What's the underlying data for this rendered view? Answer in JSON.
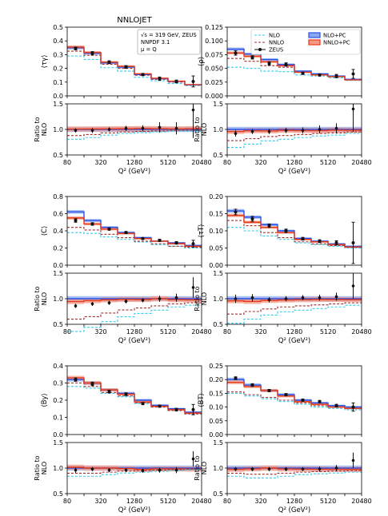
{
  "figure": {
    "title": "NNLOJET",
    "info_box": [
      "√s = 319 GeV, ZEUS",
      "NNPDF 3.1",
      "μ = Q"
    ],
    "legend": [
      {
        "label": "NLO",
        "kind": "nlo"
      },
      {
        "label": "NLO+PC",
        "kind": "nlopc"
      },
      {
        "label": "NNLO",
        "kind": "nnlo"
      },
      {
        "label": "NNLO+PC",
        "kind": "nnlopc"
      },
      {
        "label": "ZEUS",
        "kind": "data"
      }
    ],
    "colors": {
      "nlo": "#33ccee",
      "nnlo": "#a03030",
      "nlopc": "#2850e6",
      "nlopc_band": "#8aa8f2",
      "nnlopc": "#e83a18",
      "nnlopc_band": "#f49a84",
      "data": "#111111"
    }
  },
  "chart_data": [
    {
      "type": "step",
      "ylabel": "⟨τγ⟩",
      "ylim": [
        0,
        0.5
      ],
      "yticks": [
        "0.0",
        "0.1",
        "0.2",
        "0.3",
        "0.4",
        "0.5"
      ],
      "ratio_ylabel": "Ratio to NLO",
      "ratio_ylim": [
        0.5,
        1.5
      ],
      "ratio_yticks": [
        "0.5",
        "1.0",
        "1.5"
      ],
      "xlabel": "Q² (GeV²)",
      "xticks": [
        "80",
        "320",
        "1280",
        "5120",
        "20480"
      ],
      "show_legend": false,
      "show_info": true,
      "show_title": true,
      "nlo": [
        0.29,
        0.265,
        0.205,
        0.18,
        0.135,
        0.11,
        0.09,
        0.075
      ],
      "nnlo": [
        0.325,
        0.295,
        0.23,
        0.2,
        0.15,
        0.12,
        0.1,
        0.078
      ],
      "nlo_pc": [
        0.35,
        0.31,
        0.24,
        0.21,
        0.155,
        0.125,
        0.105,
        0.08
      ],
      "nnlo_pc": [
        0.355,
        0.315,
        0.245,
        0.215,
        0.16,
        0.128,
        0.107,
        0.082
      ],
      "data": [
        0.345,
        0.31,
        0.245,
        0.21,
        0.155,
        0.125,
        0.105,
        0.105
      ],
      "data_err": [
        0.01,
        0.012,
        0.01,
        0.01,
        0.008,
        0.012,
        0.01,
        0.04
      ],
      "ratio_nnlo": [
        0.88,
        0.9,
        0.93,
        0.95,
        0.96,
        0.97,
        0.98,
        0.98
      ],
      "ratio_data": [
        0.98,
        0.98,
        1.0,
        1.02,
        1.02,
        1.04,
        1.02,
        1.38
      ],
      "ratio_data_err": [
        0.04,
        0.05,
        0.04,
        0.05,
        0.06,
        0.1,
        0.12,
        0.55
      ]
    },
    {
      "type": "step",
      "ylabel": "⟨ρ⟩",
      "ylim": [
        0,
        0.125
      ],
      "yticks": [
        "0.000",
        "0.025",
        "0.050",
        "0.075",
        "0.100",
        "0.125"
      ],
      "ratio_ylabel": "Ratio to NLO",
      "ratio_ylim": [
        0.5,
        1.5
      ],
      "ratio_yticks": [
        "0.5",
        "1.0",
        "1.5"
      ],
      "xlabel": "Q² (GeV²)",
      "xticks": [
        "80",
        "320",
        "1280",
        "5120",
        "20480"
      ],
      "show_legend": true,
      "show_info": false,
      "show_title": false,
      "nlo": [
        0.052,
        0.05,
        0.045,
        0.044,
        0.038,
        0.036,
        0.033,
        0.028
      ],
      "nnlo": [
        0.068,
        0.063,
        0.055,
        0.052,
        0.043,
        0.039,
        0.035,
        0.03
      ],
      "nlo_pc": [
        0.085,
        0.076,
        0.066,
        0.057,
        0.045,
        0.04,
        0.036,
        0.03
      ],
      "nnlo_pc": [
        0.078,
        0.072,
        0.062,
        0.055,
        0.043,
        0.038,
        0.035,
        0.029
      ],
      "data": [
        0.078,
        0.07,
        0.059,
        0.057,
        0.041,
        0.038,
        0.036,
        0.04
      ],
      "data_err": [
        0.004,
        0.003,
        0.003,
        0.003,
        0.002,
        0.002,
        0.003,
        0.008
      ],
      "ratio_nnlo": [
        0.78,
        0.82,
        0.86,
        0.88,
        0.9,
        0.92,
        0.93,
        0.95
      ],
      "ratio_data": [
        0.92,
        0.96,
        0.96,
        0.98,
        0.98,
        1.0,
        1.02,
        1.4
      ],
      "ratio_data_err": [
        0.06,
        0.05,
        0.05,
        0.05,
        0.06,
        0.08,
        0.1,
        0.45
      ]
    },
    {
      "type": "step",
      "ylabel": "⟨C⟩",
      "ylim": [
        0,
        0.8
      ],
      "yticks": [
        "0.0",
        "0.2",
        "0.4",
        "0.6",
        "0.8"
      ],
      "ratio_ylabel": "Ratio to NLO",
      "ratio_ylim": [
        0.5,
        1.5
      ],
      "ratio_yticks": [
        "0.5",
        "1.0",
        "1.5"
      ],
      "xlabel": "Q² (GeV²)",
      "xticks": [
        "80",
        "320",
        "1280",
        "5120",
        "20480"
      ],
      "show_legend": false,
      "show_info": false,
      "show_title": false,
      "nlo": [
        0.38,
        0.37,
        0.33,
        0.3,
        0.27,
        0.24,
        0.22,
        0.2
      ],
      "nnlo": [
        0.44,
        0.41,
        0.36,
        0.32,
        0.28,
        0.25,
        0.22,
        0.21
      ],
      "nlo_pc": [
        0.62,
        0.52,
        0.44,
        0.38,
        0.32,
        0.28,
        0.26,
        0.23
      ],
      "nnlo_pc": [
        0.55,
        0.48,
        0.42,
        0.37,
        0.31,
        0.28,
        0.25,
        0.22
      ],
      "data": [
        0.52,
        0.48,
        0.42,
        0.38,
        0.31,
        0.29,
        0.26,
        0.25
      ],
      "data_err": [
        0.02,
        0.015,
        0.012,
        0.012,
        0.01,
        0.012,
        0.015,
        0.04
      ],
      "ratio_nnlo": [
        0.6,
        0.65,
        0.72,
        0.78,
        0.82,
        0.86,
        0.9,
        0.92
      ],
      "ratio_data": [
        0.86,
        0.9,
        0.92,
        0.95,
        0.97,
        1.0,
        1.02,
        1.22
      ],
      "ratio_data_err": [
        0.04,
        0.04,
        0.04,
        0.04,
        0.04,
        0.06,
        0.08,
        0.2
      ]
    },
    {
      "type": "step",
      "ylabel": "⟨τT⟩",
      "ylim": [
        0,
        0.2
      ],
      "yticks": [
        "0.00",
        "0.05",
        "0.10",
        "0.15",
        "0.20"
      ],
      "ratio_ylabel": "Ratio to NLO",
      "ratio_ylim": [
        0.5,
        1.5
      ],
      "ratio_yticks": [
        "0.5",
        "1.0",
        "1.5"
      ],
      "xlabel": "Q² (GeV²)",
      "xticks": [
        "80",
        "320",
        "1280",
        "5120",
        "20480"
      ],
      "show_legend": false,
      "show_info": false,
      "show_title": false,
      "nlo": [
        0.11,
        0.1,
        0.085,
        0.075,
        0.065,
        0.06,
        0.055,
        0.05
      ],
      "nnlo": [
        0.13,
        0.115,
        0.095,
        0.08,
        0.068,
        0.062,
        0.057,
        0.052
      ],
      "nlo_pc": [
        0.158,
        0.14,
        0.118,
        0.1,
        0.078,
        0.07,
        0.062,
        0.055
      ],
      "nnlo_pc": [
        0.145,
        0.125,
        0.11,
        0.095,
        0.075,
        0.068,
        0.06,
        0.053
      ],
      "data": [
        0.155,
        0.135,
        0.115,
        0.1,
        0.077,
        0.07,
        0.065,
        0.065
      ],
      "data_err": [
        0.008,
        0.007,
        0.005,
        0.005,
        0.004,
        0.004,
        0.006,
        0.06
      ],
      "ratio_nnlo": [
        0.7,
        0.75,
        0.8,
        0.84,
        0.86,
        0.88,
        0.9,
        0.92
      ],
      "ratio_data": [
        1.0,
        1.02,
        0.98,
        1.0,
        1.02,
        1.02,
        1.04,
        1.25
      ],
      "ratio_data_err": [
        0.08,
        0.07,
        0.05,
        0.05,
        0.05,
        0.06,
        0.08,
        0.25
      ]
    },
    {
      "type": "step",
      "ylabel": "⟨By⟩",
      "ylim": [
        0,
        0.4
      ],
      "yticks": [
        "0.0",
        "0.1",
        "0.2",
        "0.3",
        "0.4"
      ],
      "ratio_ylabel": "Ratio to NLO",
      "ratio_ylim": [
        0.5,
        1.5
      ],
      "ratio_yticks": [
        "0.5",
        "1.0",
        "1.5"
      ],
      "xlabel": "Q² (GeV²)",
      "xticks": [
        "80",
        "320",
        "1280",
        "5120",
        "20480"
      ],
      "show_legend": false,
      "show_info": false,
      "show_title": false,
      "nlo": [
        0.28,
        0.27,
        0.24,
        0.22,
        0.18,
        0.16,
        0.14,
        0.12
      ],
      "nnlo": [
        0.3,
        0.28,
        0.245,
        0.225,
        0.185,
        0.16,
        0.14,
        0.12
      ],
      "nlo_pc": [
        0.32,
        0.3,
        0.26,
        0.24,
        0.2,
        0.17,
        0.15,
        0.13
      ],
      "nnlo_pc": [
        0.33,
        0.3,
        0.26,
        0.235,
        0.19,
        0.165,
        0.145,
        0.125
      ],
      "data": [
        0.32,
        0.295,
        0.25,
        0.235,
        0.18,
        0.165,
        0.145,
        0.145
      ],
      "data_err": [
        0.01,
        0.01,
        0.008,
        0.008,
        0.006,
        0.006,
        0.008,
        0.03
      ],
      "ratio_nnlo": [
        0.9,
        0.9,
        0.92,
        0.94,
        0.95,
        0.96,
        0.97,
        0.98
      ],
      "ratio_data": [
        0.96,
        0.98,
        0.96,
        0.96,
        0.95,
        0.96,
        0.96,
        1.18
      ],
      "ratio_data_err": [
        0.05,
        0.04,
        0.04,
        0.04,
        0.04,
        0.05,
        0.06,
        0.15
      ]
    },
    {
      "type": "step",
      "ylabel": "⟨BT⟩",
      "ylim": [
        0,
        0.25
      ],
      "yticks": [
        "0.00",
        "0.05",
        "0.10",
        "0.15",
        "0.20",
        "0.25"
      ],
      "ratio_ylabel": "Ratio to NLO",
      "ratio_ylim": [
        0.5,
        1.5
      ],
      "ratio_yticks": [
        "0.5",
        "1.0",
        "1.5"
      ],
      "xlabel": "Q² (GeV²)",
      "xticks": [
        "80",
        "320",
        "1280",
        "5120",
        "20480"
      ],
      "show_legend": false,
      "show_info": false,
      "show_title": false,
      "nlo": [
        0.15,
        0.14,
        0.13,
        0.12,
        0.11,
        0.1,
        0.095,
        0.09
      ],
      "nnlo": [
        0.155,
        0.145,
        0.135,
        0.125,
        0.115,
        0.105,
        0.1,
        0.095
      ],
      "nlo_pc": [
        0.2,
        0.18,
        0.16,
        0.145,
        0.125,
        0.115,
        0.105,
        0.1
      ],
      "nnlo_pc": [
        0.19,
        0.175,
        0.16,
        0.14,
        0.12,
        0.11,
        0.1,
        0.095
      ],
      "data": [
        0.205,
        0.18,
        0.16,
        0.145,
        0.125,
        0.12,
        0.105,
        0.1
      ],
      "data_err": [
        0.005,
        0.005,
        0.004,
        0.004,
        0.004,
        0.004,
        0.005,
        0.015
      ],
      "ratio_nnlo": [
        0.9,
        0.88,
        0.88,
        0.9,
        0.92,
        0.93,
        0.94,
        0.95
      ],
      "ratio_data": [
        0.98,
        0.98,
        0.98,
        0.98,
        0.98,
        0.98,
        1.0,
        1.15
      ],
      "ratio_data_err": [
        0.04,
        0.04,
        0.04,
        0.04,
        0.04,
        0.05,
        0.06,
        0.15
      ]
    }
  ]
}
